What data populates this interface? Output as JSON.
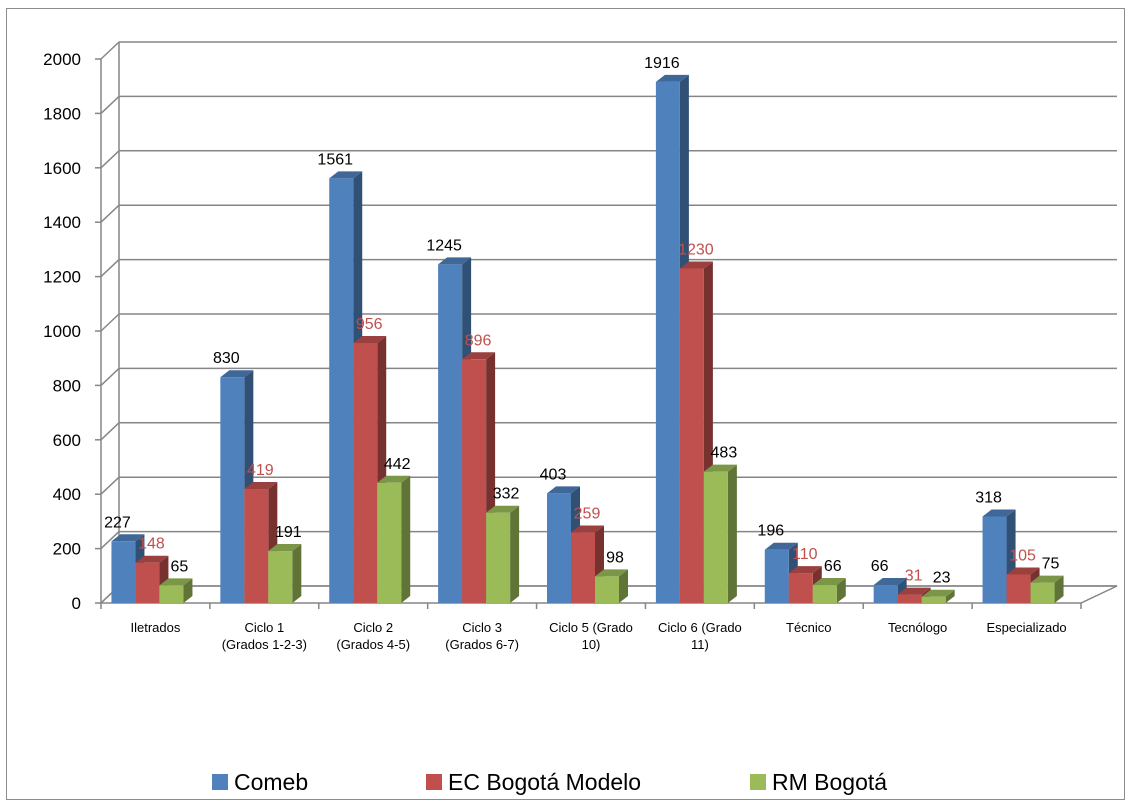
{
  "chart_data": {
    "type": "bar",
    "categories": [
      "Iletrados",
      "Ciclo 1\n(Grados 1-2-3)",
      "Ciclo 2\n(Grados 4-5)",
      "Ciclo 3\n(Grados 6-7)",
      "Ciclo 5 (Grado\n10)",
      "Ciclo 6 (Grado\n11)",
      "Técnico",
      "Tecnólogo",
      "Especializado"
    ],
    "series": [
      {
        "name": "Comeb",
        "color": "#4f81bd",
        "label_color": "#000000",
        "values": [
          227,
          830,
          1561,
          1245,
          403,
          1916,
          196,
          66,
          318
        ]
      },
      {
        "name": "EC Bogotá Modelo",
        "color": "#c0504d",
        "label_color": "#c0504d",
        "values": [
          148,
          419,
          956,
          896,
          259,
          1230,
          110,
          31,
          105
        ]
      },
      {
        "name": "RM Bogotá",
        "color": "#9bbb59",
        "label_color": "#000000",
        "values": [
          65,
          191,
          442,
          332,
          98,
          483,
          66,
          23,
          75
        ]
      }
    ],
    "yticks": [
      "0",
      "200",
      "400",
      "600",
      "800",
      "1000",
      "1200",
      "1400",
      "1600",
      "1800",
      "2000"
    ],
    "ylim": [
      0,
      2000
    ],
    "grid": true,
    "legend_position": "bottom",
    "style": "3d-clustered-column"
  }
}
